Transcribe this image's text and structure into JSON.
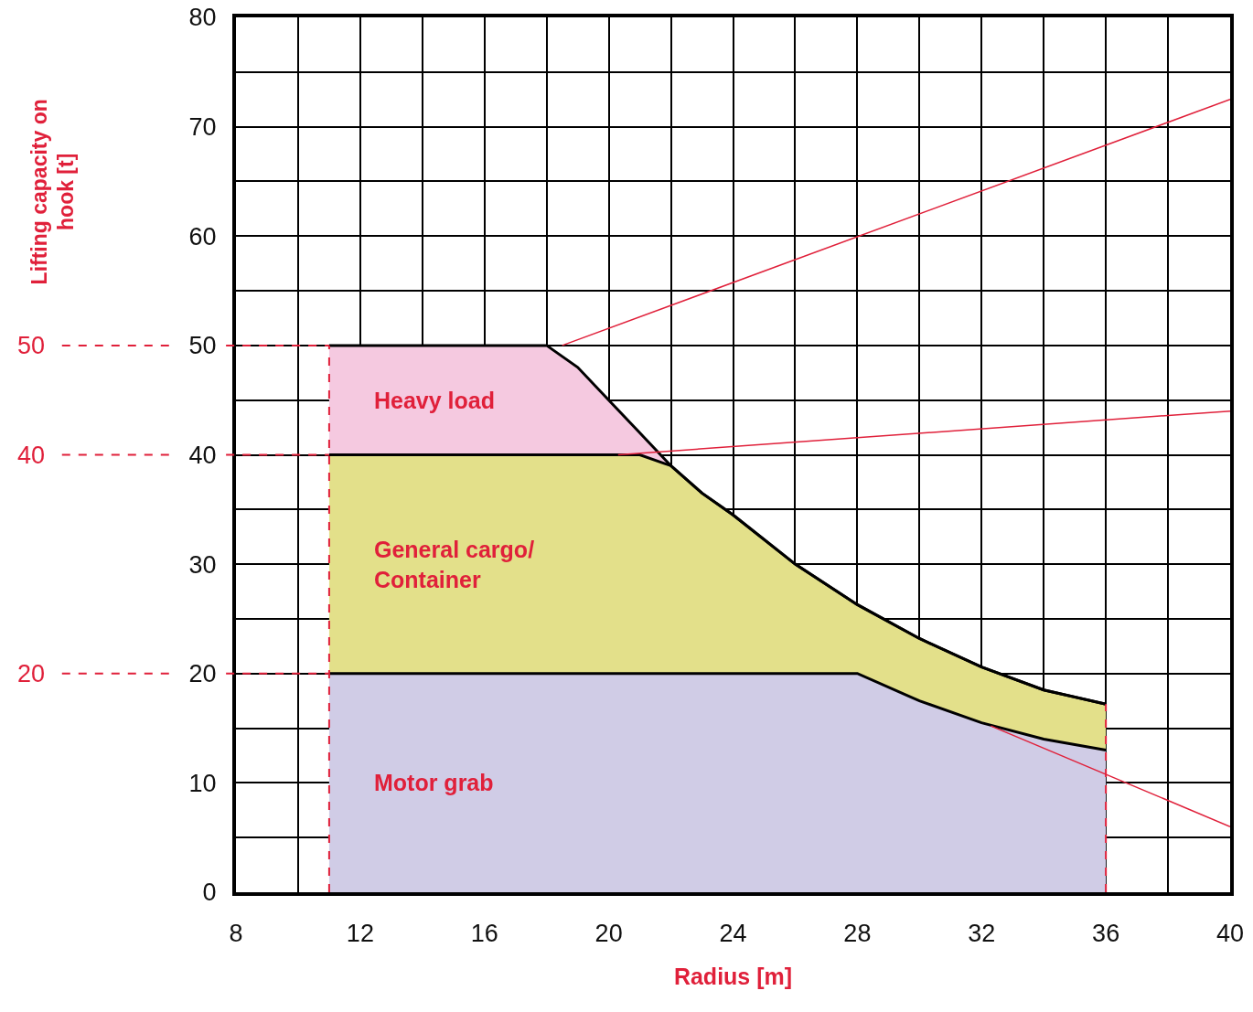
{
  "chart_data": {
    "type": "area",
    "xlabel": "Radius [m]",
    "xlim": [
      8,
      40
    ],
    "ylim": [
      0,
      80
    ],
    "xticks": [
      8,
      {
        "value": 10,
        "label": null
      },
      12,
      {
        "value": 14,
        "label": null
      },
      16,
      {
        "value": 18,
        "label": null
      },
      20,
      {
        "value": 22,
        "label": null
      },
      24,
      {
        "value": 26,
        "label": null
      },
      28,
      {
        "value": 30,
        "label": null
      },
      32,
      {
        "value": 34,
        "label": null
      },
      36,
      {
        "value": 38,
        "label": null
      },
      40
    ],
    "yticks": [
      0,
      {
        "value": 5,
        "label": null
      },
      10,
      {
        "value": 15,
        "label": null
      },
      20,
      {
        "value": 25,
        "label": null
      },
      30,
      {
        "value": 35,
        "label": null
      },
      40,
      {
        "value": 45,
        "label": null
      },
      50,
      {
        "value": 55,
        "label": null
      },
      60,
      {
        "value": 65,
        "label": null
      },
      70,
      {
        "value": 75,
        "label": null
      },
      80
    ],
    "grid": true,
    "legend": false,
    "series": [
      {
        "name": "Motor grab",
        "color": "#d0cce6",
        "x": [
          11,
          12,
          14,
          16,
          18,
          19,
          20,
          21,
          22,
          23,
          24,
          26,
          28,
          30,
          32,
          34,
          36
        ],
        "values": [
          20,
          20,
          20,
          20,
          20,
          20,
          20,
          20,
          20,
          20,
          20,
          20,
          20,
          17.5,
          15.5,
          14,
          13
        ]
      },
      {
        "name": "General cargo/\nContainer",
        "color": "#e3e08a",
        "x": [
          11,
          12,
          14,
          16,
          18,
          19,
          20,
          21,
          22,
          23,
          24,
          26,
          28,
          30,
          32,
          34,
          36
        ],
        "values": [
          40,
          40,
          40,
          40,
          40,
          40,
          40,
          40,
          39,
          36.5,
          34.5,
          30,
          26.3,
          23.2,
          20.6,
          18.5,
          17.2
        ]
      },
      {
        "name": "Heavy load",
        "color": "#f5c9e0",
        "x": [
          11,
          12,
          14,
          16,
          18,
          19,
          20,
          21,
          22,
          23,
          24,
          26,
          28,
          30,
          32,
          34,
          36
        ],
        "values": [
          50,
          50,
          50,
          50,
          50,
          48,
          45,
          42,
          39,
          36.5,
          34.5,
          30,
          26.3,
          23.2,
          20.6,
          18.5,
          17.2
        ]
      },
      {
        "type": "line",
        "color": "#e0203a",
        "line_style": "dashed",
        "x": [
          11,
          11
        ],
        "values": [
          0,
          50
        ]
      },
      {
        "type": "line",
        "color": "#e0203a",
        "line_style": "dashed",
        "x": [
          36,
          36
        ],
        "values": [
          0,
          17.2
        ]
      },
      {
        "type": "line",
        "color": "#e0203a",
        "x": [
          18.5,
          40
        ],
        "values": [
          50,
          72.5
        ]
      },
      {
        "type": "line",
        "color": "#e0203a",
        "x": [
          20.3,
          40
        ],
        "values": [
          40,
          44
        ]
      },
      {
        "type": "line",
        "color": "#e0203a",
        "x": [
          32.3,
          40
        ],
        "values": [
          15.2,
          6
        ]
      }
    ],
    "ref_lines": [
      {
        "axis": "y",
        "value": 50,
        "label": "50",
        "color": "#e0203a",
        "line_style": "dashed"
      },
      {
        "axis": "y",
        "value": 40,
        "label": "40",
        "color": "#e0203a",
        "line_style": "dashed"
      },
      {
        "axis": "y",
        "value": 20,
        "label": "20",
        "color": "#e0203a",
        "line_style": "dashed"
      }
    ],
    "annotations": [
      "Lifting capacity on\nhook [t]"
    ]
  }
}
